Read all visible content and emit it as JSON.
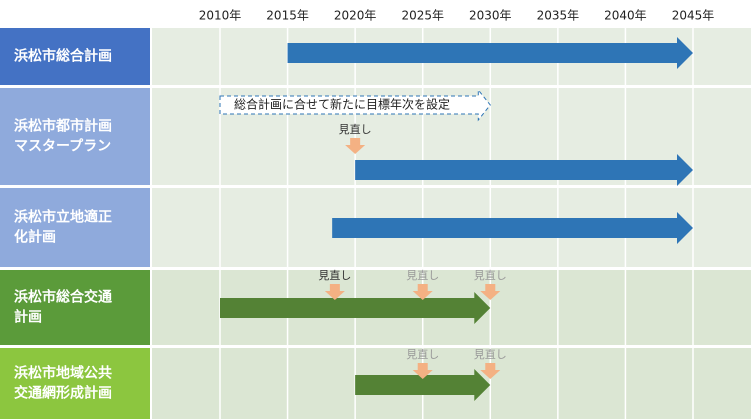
{
  "axis": {
    "years": [
      {
        "value": 2010,
        "label": "2010年"
      },
      {
        "value": 2015,
        "label": "2015年"
      },
      {
        "value": 2020,
        "label": "2020年"
      },
      {
        "value": 2025,
        "label": "2025年"
      },
      {
        "value": 2030,
        "label": "2030年"
      },
      {
        "value": 2035,
        "label": "2035年"
      },
      {
        "value": 2040,
        "label": "2040年"
      },
      {
        "value": 2045,
        "label": "2045年"
      }
    ]
  },
  "rows": [
    {
      "label": [
        "浜松市総合計画"
      ],
      "color": "#4472c4",
      "arrow_color": "#2e75b6",
      "arrows": [
        {
          "start": 2015,
          "end": 2045
        }
      ],
      "reviews": []
    },
    {
      "label": [
        "浜松市都市計画",
        "マスタープラン"
      ],
      "color": "#8faadc",
      "arrow_color": "#2e75b6",
      "note": {
        "text": "総合計画に合せて新たに目標年次を設定",
        "start": 2010,
        "end": 2030
      },
      "arrows": [
        {
          "start": 2020,
          "end": 2045
        }
      ],
      "reviews": [
        {
          "year": 2020,
          "label": "見直し",
          "color": "#333333"
        }
      ]
    },
    {
      "label": [
        "浜松市立地適正",
        "化計画"
      ],
      "color": "#8faadc",
      "arrow_color": "#2e75b6",
      "arrows": [
        {
          "start": 2018.3,
          "end": 2045
        }
      ],
      "reviews": []
    },
    {
      "label": [
        "浜松市総合交通",
        "計画"
      ],
      "color": "#5b9b3a",
      "arrow_color": "#548235",
      "arrows": [
        {
          "start": 2010,
          "end": 2030
        }
      ],
      "reviews": [
        {
          "year": 2018.5,
          "label": "見直し",
          "color": "#333333"
        },
        {
          "year": 2025,
          "label": "見直し",
          "color": "#999999"
        },
        {
          "year": 2030,
          "label": "見直し",
          "color": "#999999"
        }
      ]
    },
    {
      "label": [
        "浜松市地域公共",
        "交通網形成計画"
      ],
      "color": "#8cc63f",
      "arrow_color": "#548235",
      "arrows": [
        {
          "start": 2020,
          "end": 2030
        }
      ],
      "reviews": [
        {
          "year": 2025,
          "label": "見直し",
          "color": "#999999"
        },
        {
          "year": 2030,
          "label": "見直し",
          "color": "#999999"
        }
      ]
    }
  ]
}
